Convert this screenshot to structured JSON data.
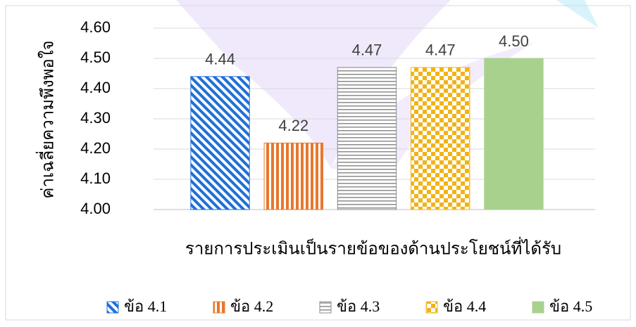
{
  "chart_data": {
    "type": "bar",
    "y_label": "ค่าเฉลี่ยความพึงพอใจ",
    "x_label": "รายการประเมินเป็นรายข้อของด้านประโยชน์ที่ได้รับ",
    "categories": [
      null
    ],
    "series": [
      {
        "name": "ข้อ 4.1",
        "color": "#1f6fd8",
        "pattern": "diagonal",
        "values": [
          4.44
        ],
        "value_labels": [
          "4.44"
        ]
      },
      {
        "name": "ข้อ 4.2",
        "color": "#e8772e",
        "pattern": "vertical",
        "values": [
          4.22
        ],
        "value_labels": [
          "4.22"
        ]
      },
      {
        "name": "ข้อ 4.3",
        "color": "#8c8c8c",
        "pattern": "horizontal",
        "values": [
          4.47
        ],
        "value_labels": [
          "4.47"
        ]
      },
      {
        "name": "ข้อ 4.4",
        "color": "#f2b316",
        "pattern": "checker",
        "values": [
          4.47
        ],
        "value_labels": [
          "4.47"
        ]
      },
      {
        "name": "ข้อ 4.5",
        "color": "#a9d18e",
        "pattern": "solid",
        "values": [
          4.5
        ],
        "value_labels": [
          "4.50"
        ]
      }
    ],
    "ylim": [
      4,
      4.6
    ],
    "yticks": [
      {
        "value": 4,
        "label": "4.00"
      },
      {
        "value": 4.1,
        "label": "4.10"
      },
      {
        "value": 4.2,
        "label": "4.20"
      },
      {
        "value": 4.3,
        "label": "4.30"
      },
      {
        "value": 4.4,
        "label": "4.40"
      },
      {
        "value": 4.5,
        "label": "4.50"
      },
      {
        "value": 4.6,
        "label": "4.60"
      }
    ],
    "grid": true,
    "legend": "bottom"
  }
}
